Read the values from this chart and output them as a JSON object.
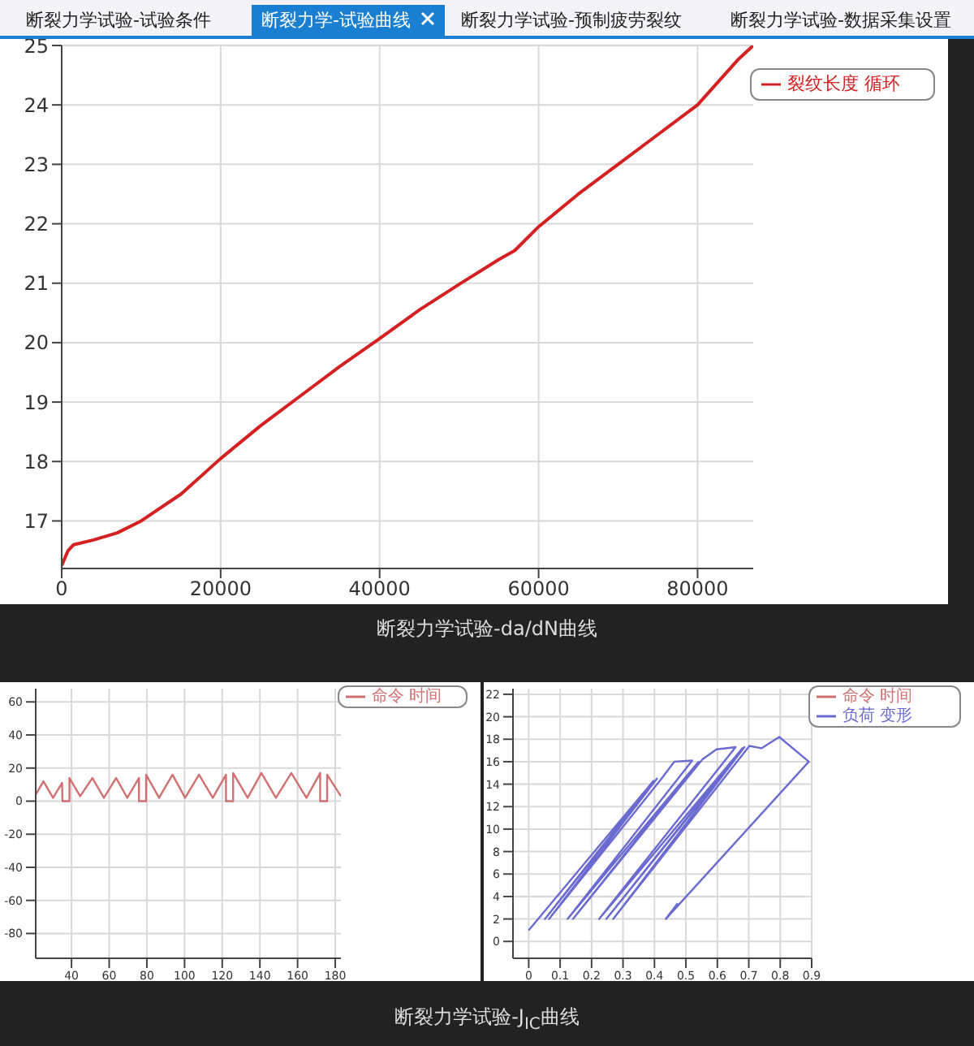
{
  "chart_data": [
    {
      "type": "line",
      "title": "断裂力学试验-da/dN曲线",
      "annotations": [
        "断裂力学试验-试验条件",
        "断裂力学-试验曲线",
        "断裂力学试验-预制疲劳裂纹",
        "断裂力学试验-数据采集设置"
      ],
      "xlim": [
        0,
        87000
      ],
      "ylim": [
        16.2,
        25
      ],
      "xticks": [
        0,
        20000,
        40000,
        60000,
        80000
      ],
      "yticks": [
        17,
        18,
        19,
        20,
        21,
        22,
        23,
        24,
        25
      ],
      "grid": true,
      "legend": "top right",
      "series": [
        {
          "name": "裂纹长度 循环",
          "color": "#d42020",
          "x": [
            0,
            800,
            1500,
            4000,
            7000,
            10000,
            15000,
            20000,
            25000,
            30000,
            35000,
            40000,
            45000,
            50000,
            55000,
            57000,
            60000,
            65000,
            70000,
            75000,
            80000,
            85000,
            87000
          ],
          "values": [
            16.25,
            16.5,
            16.6,
            16.68,
            16.8,
            17.0,
            17.45,
            18.05,
            18.6,
            19.1,
            19.6,
            20.07,
            20.55,
            20.98,
            21.4,
            21.55,
            21.95,
            22.5,
            23.0,
            23.5,
            24.0,
            24.75,
            25.0
          ]
        }
      ]
    },
    {
      "type": "line",
      "annotations": [
        "断裂力学试验-J$_{IC}$曲线"
      ],
      "xlim": [
        21,
        183
      ],
      "ylim": [
        -95,
        68
      ],
      "xticks": [
        40,
        60,
        80,
        100,
        120,
        140,
        160,
        180
      ],
      "yticks": [
        -80,
        -60,
        -40,
        -20,
        0,
        20,
        40,
        60
      ],
      "grid": true,
      "legend": "top right",
      "series": [
        {
          "name": "命令 时间",
          "color": "#d07070",
          "x": [
            21,
            25.1,
            30.2,
            35,
            35.2,
            38.9,
            38.9,
            44.6,
            51.1,
            57.2,
            63.7,
            69.6,
            75.8,
            75.8,
            79.6,
            79.6,
            86.5,
            93.6,
            100.3,
            107.7,
            115,
            122,
            122,
            125.8,
            125.8,
            133.5,
            140.8,
            148.5,
            156.7,
            164.7,
            172,
            172,
            175.7,
            175.7,
            183
          ],
          "values": [
            4,
            12,
            2,
            11,
            0,
            0,
            14,
            3,
            14,
            2,
            14,
            2,
            14,
            0,
            0,
            16,
            2,
            16,
            2,
            16,
            2,
            16,
            0,
            0,
            17,
            2,
            17,
            2,
            17,
            2,
            17,
            0,
            0,
            16,
            3
          ]
        }
      ]
    },
    {
      "type": "line",
      "xlim": [
        -0.05,
        0.9
      ],
      "ylim": [
        -1.5,
        22.5
      ],
      "xticks": [
        0,
        0.1,
        0.2,
        0.3,
        0.4,
        0.5,
        0.6,
        0.7,
        0.8,
        0.9
      ],
      "yticks": [
        0,
        2,
        4,
        6,
        8,
        10,
        12,
        14,
        16,
        18,
        20,
        22
      ],
      "grid": true,
      "legend": "top right",
      "series": [
        {
          "name": "命令 时间",
          "color": "#d07070"
        },
        {
          "name": "负荷 变形",
          "color": "#6a6ad0",
          "x": [
            0,
            0.397,
            0.052,
            0.408,
            0.065,
            0.42,
            0.463,
            0.52,
            0.124,
            0.54,
            0.141,
            0.552,
            0.597,
            0.658,
            0.224,
            0.68,
            0.247,
            0.686,
            0.269,
            0.702,
            0.741,
            0.797,
            0.891,
            0.436,
            0.474
          ],
          "values": [
            1,
            14.3,
            2,
            14.5,
            2,
            14.4,
            16,
            16.1,
            2,
            16,
            2,
            16.2,
            17.1,
            17.3,
            2,
            17.2,
            2,
            17.3,
            2,
            17.4,
            17.2,
            18.2,
            16,
            2,
            3.4
          ]
        }
      ]
    }
  ]
}
